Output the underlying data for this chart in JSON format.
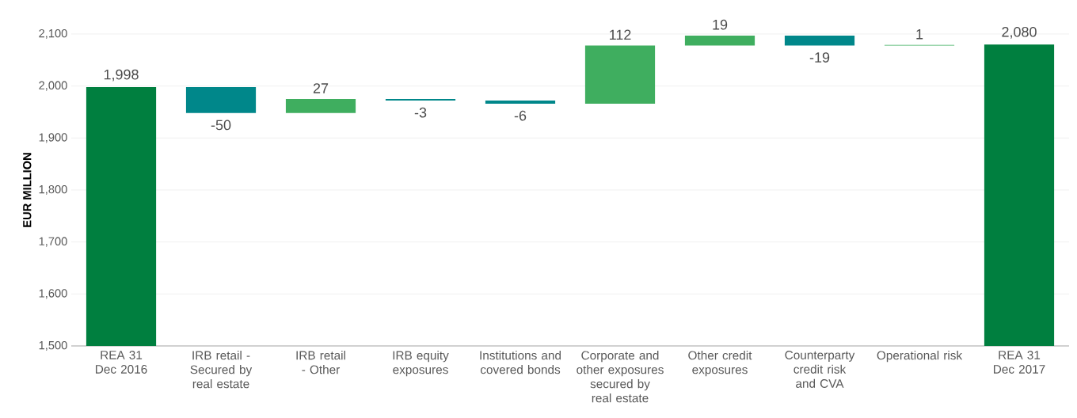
{
  "chart_data": {
    "type": "bar",
    "ylabel": "EUR MILLION",
    "categories": [
      "REA 31 Dec 2016",
      "IRB retail - Secured by real estate",
      "IRB retail - Other",
      "IRB equity exposures",
      "Institutions and covered bonds",
      "Corporate and other exposures secured by real estate",
      "Other credit exposures",
      "Counterparty credit risk and CVA",
      "Operational risk",
      "REA 31 Dec 2017"
    ],
    "values": [
      1998,
      -50,
      27,
      -3,
      -6,
      112,
      19,
      -19,
      1,
      2080
    ],
    "base": [
      null,
      1998,
      1948,
      1975,
      1972,
      1966,
      2078,
      2097,
      2078,
      null
    ],
    "colors": [
      "#007f3f",
      "#00878a",
      "#3fae5f",
      "#00878a",
      "#00878a",
      "#3fae5f",
      "#3fae5f",
      "#00878a",
      "#3fae5f",
      "#007f3f"
    ],
    "value_labels": [
      "1,998",
      "-50",
      "27",
      "-3",
      "-6",
      "112",
      "19",
      "-19",
      "1",
      "2,080"
    ],
    "ylim": [
      1500,
      2100
    ],
    "yticks": [
      {
        "value": 1500,
        "label": "1,500"
      },
      {
        "value": 1600,
        "label": "1,600"
      },
      {
        "value": 1700,
        "label": "1,700"
      },
      {
        "value": 1800,
        "label": "1,800"
      },
      {
        "value": 1900,
        "label": "1,900"
      },
      {
        "value": 2000,
        "label": "2,000"
      },
      {
        "value": 2100,
        "label": "2,100"
      }
    ],
    "grid": "y"
  }
}
